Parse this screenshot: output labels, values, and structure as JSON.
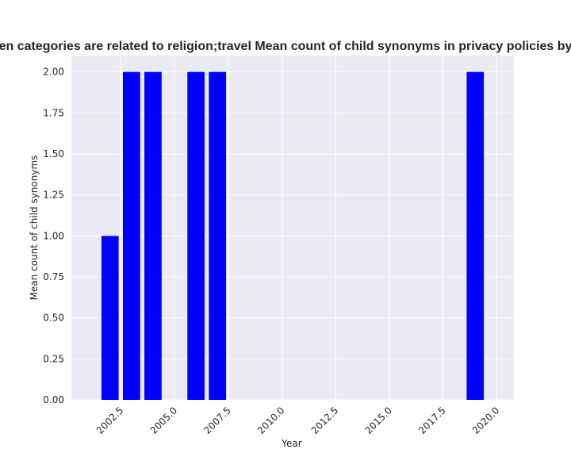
{
  "chart_data": {
    "type": "bar",
    "title": "en categories are related to religion;travel Mean count of child synonyms in privacy policies by",
    "xlabel": "Year",
    "ylabel": "Mean count of child synonyms",
    "x": [
      2002,
      2003,
      2004,
      2006,
      2007,
      2019
    ],
    "values": [
      1.0,
      2.0,
      2.0,
      2.0,
      2.0,
      2.0
    ],
    "xlim": [
      2000.2,
      2020.8
    ],
    "ylim": [
      0,
      2.1
    ],
    "xticks": [
      2002.5,
      2005.0,
      2007.5,
      2010.0,
      2012.5,
      2015.0,
      2017.5,
      2020.0
    ],
    "xtick_labels": [
      "2002.5",
      "2005.0",
      "2007.5",
      "2010.0",
      "2012.5",
      "2015.0",
      "2017.5",
      "2020.0"
    ],
    "yticks": [
      0.0,
      0.25,
      0.5,
      0.75,
      1.0,
      1.25,
      1.5,
      1.75,
      2.0
    ],
    "ytick_labels": [
      "0.00",
      "0.25",
      "0.50",
      "0.75",
      "1.00",
      "1.25",
      "1.50",
      "1.75",
      "2.00"
    ],
    "bar_width": 0.8,
    "grid": true,
    "colors": {
      "bar": "#0000ff",
      "plot_background": "#eaeaf2",
      "grid": "#ffffff",
      "text": "#262626"
    }
  }
}
